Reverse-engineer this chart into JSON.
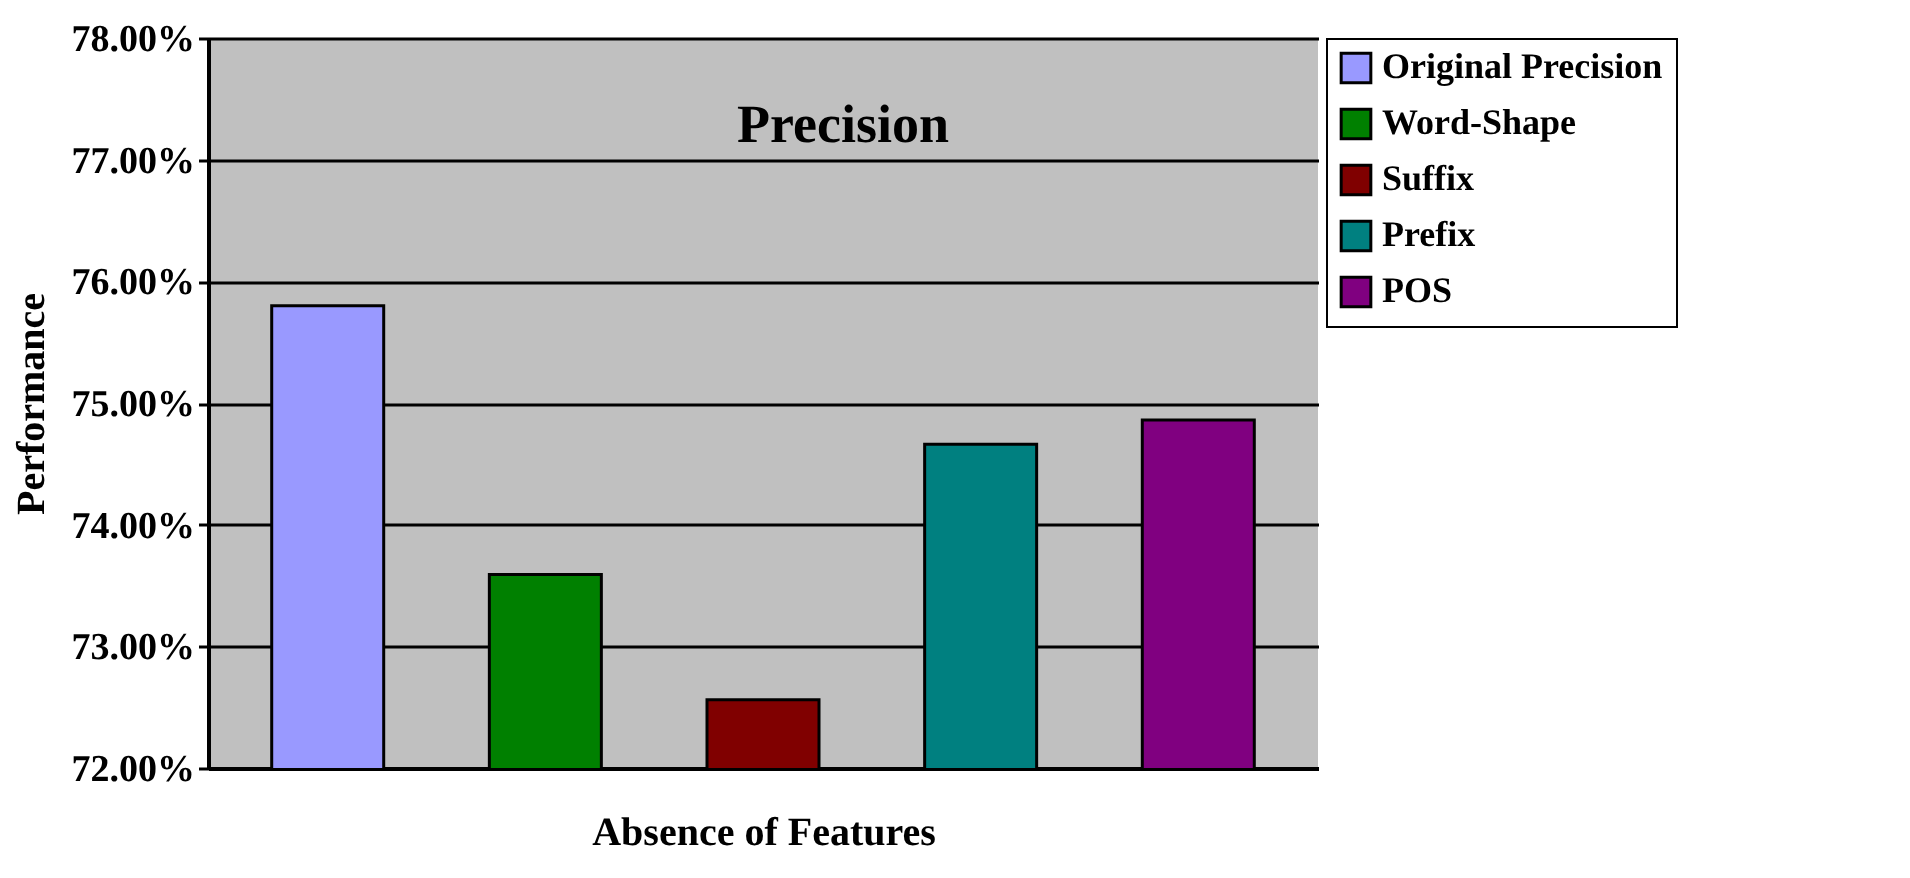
{
  "chart_data": {
    "type": "bar",
    "title": "Precision",
    "xlabel": "Absence of Features",
    "ylabel": "Performance",
    "categories": [
      null
    ],
    "series": [
      {
        "name": "Original Precision",
        "color": "#9999ff",
        "values": [
          75.8
        ]
      },
      {
        "name": "Word-Shape",
        "color": "#008000",
        "values": [
          73.59
        ]
      },
      {
        "name": "Suffix",
        "color": "#800000",
        "values": [
          72.56
        ]
      },
      {
        "name": "Prefix",
        "color": "#008080",
        "values": [
          74.66
        ]
      },
      {
        "name": "POS",
        "color": "#800080",
        "values": [
          74.86
        ]
      }
    ],
    "ylim": [
      72,
      78
    ],
    "yticks": [
      {
        "value": 72,
        "label": "72.00%"
      },
      {
        "value": 73,
        "label": "73.00%"
      },
      {
        "value": 74,
        "label": "74.00%"
      },
      {
        "value": 75,
        "label": "75.00%"
      },
      {
        "value": 76,
        "label": "76.00%"
      },
      {
        "value": 77,
        "label": "77.00%"
      },
      {
        "value": 78,
        "label": "78.00%"
      }
    ],
    "grid": "y",
    "legend": "right",
    "tick_labels": "y"
  }
}
